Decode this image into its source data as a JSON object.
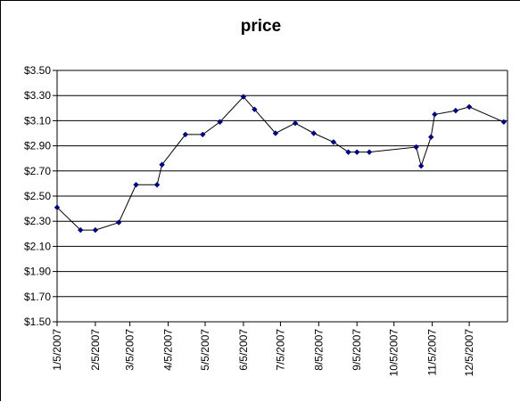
{
  "chart_data": {
    "type": "line",
    "title": "price",
    "xlabel": "",
    "ylabel": "",
    "x_axis": {
      "type": "date",
      "range": [
        "2007-01-05",
        "2008-01-05"
      ],
      "tick_labels": [
        "1/5/2007",
        "2/5/2007",
        "3/5/2007",
        "4/5/2007",
        "5/5/2007",
        "6/5/2007",
        "7/5/2007",
        "8/5/2007",
        "9/5/2007",
        "10/5/2007",
        "11/5/2007",
        "12/5/2007"
      ],
      "tick_dates": [
        "2007-01-05",
        "2007-02-05",
        "2007-03-05",
        "2007-04-05",
        "2007-05-05",
        "2007-06-05",
        "2007-07-05",
        "2007-08-05",
        "2007-09-05",
        "2007-10-05",
        "2007-11-05",
        "2007-12-05"
      ]
    },
    "y_axis": {
      "range": [
        1.5,
        3.5
      ],
      "ticks": [
        1.5,
        1.7,
        1.9,
        2.1,
        2.3,
        2.5,
        2.7,
        2.9,
        3.1,
        3.3,
        3.5
      ],
      "tick_labels": [
        "$1.50",
        "$1.70",
        "$1.90",
        "$2.10",
        "$2.30",
        "$2.50",
        "$2.70",
        "$2.90",
        "$3.10",
        "$3.30",
        "$3.50"
      ]
    },
    "grid": "horizontal",
    "legend": "none",
    "colors": {
      "line": "#000000",
      "marker": "#000080",
      "grid": "#000000"
    },
    "series": [
      {
        "points": [
          {
            "x": "2007-01-05",
            "y": 2.41
          },
          {
            "x": "2007-01-24",
            "y": 2.23
          },
          {
            "x": "2007-02-05",
            "y": 2.23
          },
          {
            "x": "2007-02-24",
            "y": 2.29
          },
          {
            "x": "2007-03-10",
            "y": 2.59
          },
          {
            "x": "2007-03-27",
            "y": 2.59
          },
          {
            "x": "2007-03-31",
            "y": 2.75
          },
          {
            "x": "2007-04-19",
            "y": 2.99
          },
          {
            "x": "2007-05-03",
            "y": 2.99
          },
          {
            "x": "2007-05-17",
            "y": 3.09
          },
          {
            "x": "2007-06-05",
            "y": 3.29
          },
          {
            "x": "2007-06-14",
            "y": 3.19
          },
          {
            "x": "2007-07-01",
            "y": 3.0
          },
          {
            "x": "2007-07-17",
            "y": 3.08
          },
          {
            "x": "2007-08-01",
            "y": 3.0
          },
          {
            "x": "2007-08-17",
            "y": 2.93
          },
          {
            "x": "2007-08-29",
            "y": 2.85
          },
          {
            "x": "2007-09-05",
            "y": 2.85
          },
          {
            "x": "2007-09-15",
            "y": 2.85
          },
          {
            "x": "2007-10-23",
            "y": 2.89
          },
          {
            "x": "2007-10-27",
            "y": 2.74
          },
          {
            "x": "2007-11-04",
            "y": 2.97
          },
          {
            "x": "2007-11-07",
            "y": 3.15
          },
          {
            "x": "2007-11-24",
            "y": 3.18
          },
          {
            "x": "2007-12-05",
            "y": 3.21
          },
          {
            "x": "2008-01-02",
            "y": 3.09
          }
        ]
      }
    ]
  }
}
